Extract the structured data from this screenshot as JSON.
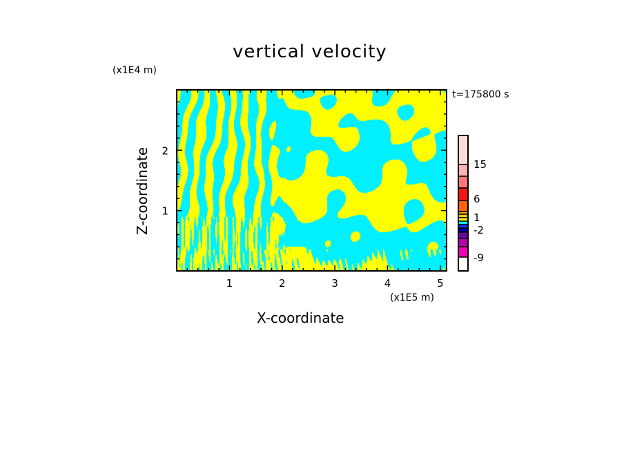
{
  "chart_data": {
    "type": "heatmap",
    "title": "vertical velocity",
    "xlabel": "X-coordinate",
    "ylabel": "Z-coordinate",
    "x_unit": "(x1E5 m)",
    "y_unit": "(x1E4 m)",
    "annotation": "t=175800 s",
    "xlim": [
      0,
      5.12
    ],
    "ylim": [
      0,
      3.0
    ],
    "x_ticks": [
      "1",
      "2",
      "3",
      "4",
      "5"
    ],
    "x_tick_values": [
      1,
      2,
      3,
      4,
      5
    ],
    "y_ticks": [
      "1",
      "2"
    ],
    "y_tick_values": [
      1,
      2
    ],
    "colorbar": {
      "labels": [
        "15",
        "6",
        "1",
        "-2",
        "-9"
      ],
      "label_values": [
        15,
        6,
        1,
        -2,
        -9
      ],
      "levels": [
        {
          "color": "#ffdcdc",
          "range": "above 15"
        },
        {
          "color": "#ffb4b4",
          "range": "12 to 15"
        },
        {
          "color": "#ff7878",
          "range": "9 to 12"
        },
        {
          "color": "#ff1414",
          "range": "6 to 9"
        },
        {
          "color": "#ff6400",
          "range": "3 to 6"
        },
        {
          "color": "#ffa000",
          "range": "2 to 3"
        },
        {
          "color": "#ffd200",
          "range": "1 to 2"
        },
        {
          "color": "#ffff00",
          "range": "0 to 1"
        },
        {
          "color": "#00f0ff",
          "range": "-1 to 0"
        },
        {
          "color": "#0a3cff",
          "range": "-2 to -1"
        },
        {
          "color": "#0000a0",
          "range": "-3 to -2"
        },
        {
          "color": "#6e00aa",
          "range": "-6 to -3"
        },
        {
          "color": "#b400aa",
          "range": "-9 to -6"
        },
        {
          "color": "#f000b4",
          "range": "below -9"
        }
      ]
    },
    "field_colors": {
      "positive": "#ffff00",
      "negative": "#00f0ff"
    }
  }
}
